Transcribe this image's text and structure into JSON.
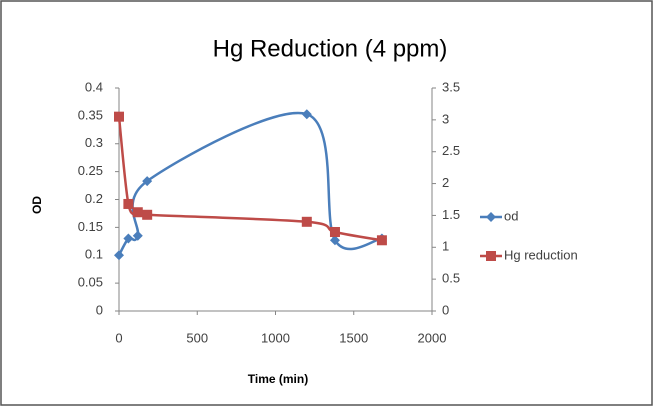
{
  "chart_data": {
    "type": "line",
    "title": "Hg Reduction (4 ppm)",
    "x_label": "Time (min)",
    "y_label": "OD",
    "x": [
      0,
      60,
      120,
      180,
      1200,
      1380,
      1680
    ],
    "series": [
      {
        "name": "od",
        "color": "#4a7ebb",
        "marker": "diamond",
        "values": [
          0.1,
          0.13,
          0.135,
          0.233,
          0.353,
          0.127,
          0.13
        ]
      },
      {
        "name": "Hg reduction",
        "color": "#be4b48",
        "marker": "square",
        "axis": "y2",
        "values": [
          3.05,
          1.68,
          1.55,
          1.51,
          1.4,
          1.24,
          1.11
        ]
      }
    ],
    "xlim": [
      0,
      2000
    ],
    "xticks": [
      0,
      500,
      1000,
      1500,
      2000
    ],
    "ylim": [
      0,
      0.4
    ],
    "yticks": [
      0,
      0.05,
      0.1,
      0.15,
      0.2,
      0.25,
      0.3,
      0.35,
      0.4
    ],
    "y2lim": [
      0,
      3.5
    ],
    "y2ticks": [
      0,
      0.5,
      1,
      1.5,
      2,
      2.5,
      3,
      3.5
    ],
    "smooth": true,
    "legend": "right"
  }
}
